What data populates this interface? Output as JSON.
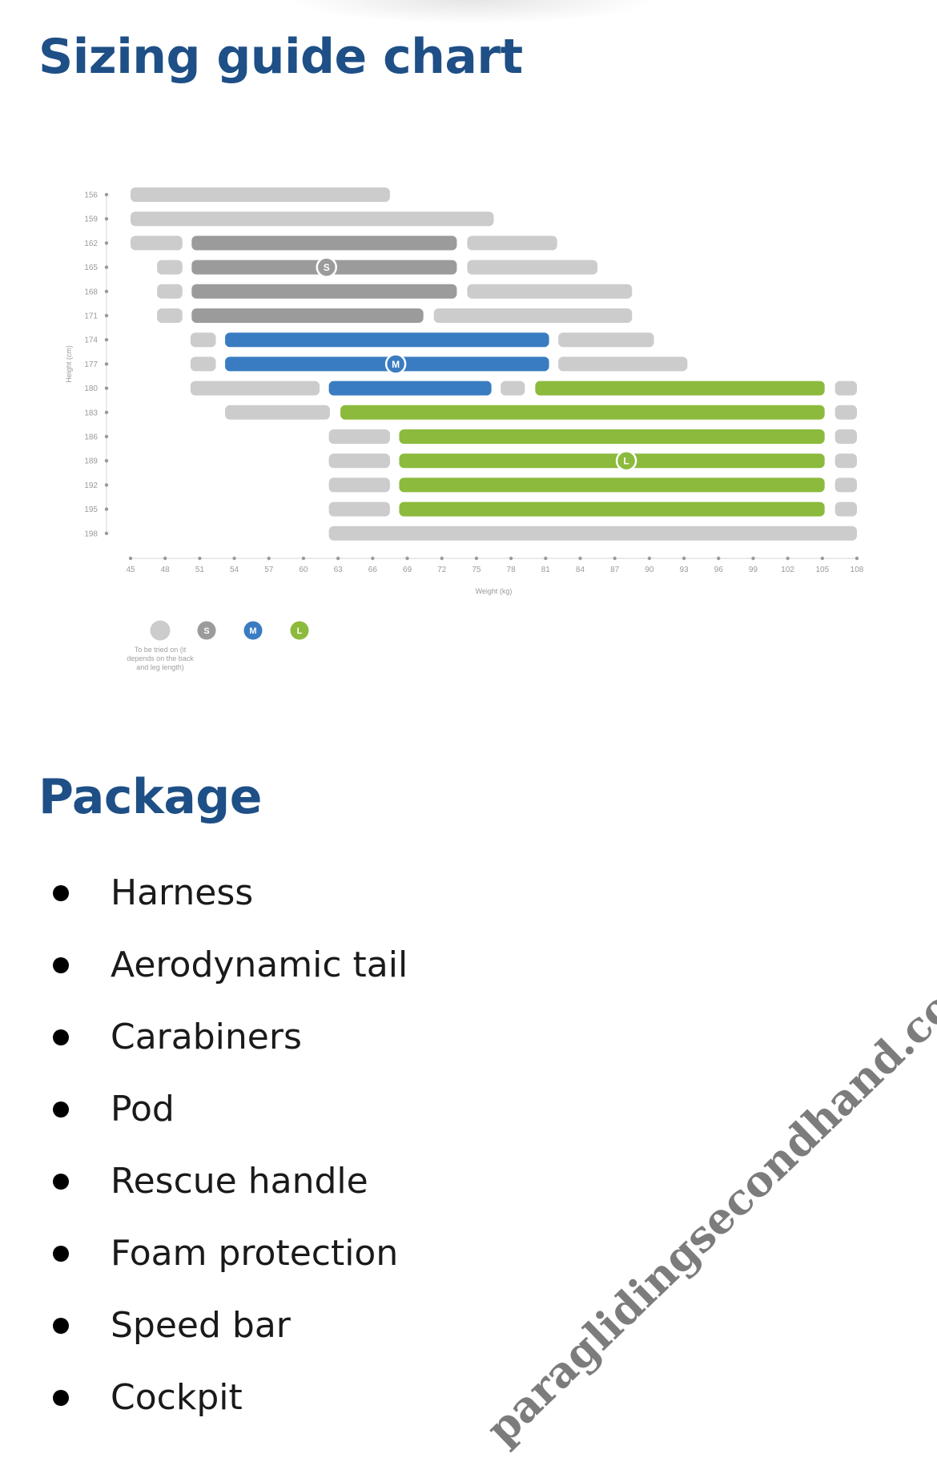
{
  "headings": {
    "sizing": "Sizing guide chart",
    "package": "Package"
  },
  "chart_data": {
    "type": "range-bar",
    "xlabel": "Weight (kg)",
    "ylabel": "Height (cm)",
    "x_ticks": [
      45,
      48,
      51,
      54,
      57,
      60,
      63,
      66,
      69,
      72,
      75,
      78,
      81,
      84,
      87,
      90,
      93,
      96,
      99,
      102,
      105,
      108
    ],
    "y_ticks": [
      156,
      159,
      162,
      165,
      168,
      171,
      174,
      177,
      180,
      183,
      186,
      189,
      192,
      195,
      198
    ],
    "xlim": [
      45,
      108
    ],
    "colors": {
      "try": "#cccccc",
      "S": "#9b9b9b",
      "M": "#3a7cc1",
      "L": "#8cba3c",
      "axis": "#9a9a9a"
    },
    "legend": [
      {
        "key": "try",
        "badge": "",
        "label": "To be tried on (it depends on the back and leg length)"
      },
      {
        "key": "S",
        "badge": "S",
        "label": ""
      },
      {
        "key": "M",
        "badge": "M",
        "label": ""
      },
      {
        "key": "L",
        "badge": "L",
        "label": ""
      }
    ],
    "size_markers": [
      {
        "size": "S",
        "height": 165,
        "weight": 62
      },
      {
        "size": "M",
        "height": 177,
        "weight": 68
      },
      {
        "size": "L",
        "height": 189,
        "weight": 88
      }
    ],
    "rows": [
      {
        "height": 156,
        "segments": [
          {
            "type": "try",
            "from": 45,
            "to": 67.5
          }
        ]
      },
      {
        "height": 159,
        "segments": [
          {
            "type": "try",
            "from": 45,
            "to": 76.5
          }
        ]
      },
      {
        "height": 162,
        "segments": [
          {
            "type": "try",
            "from": 45,
            "to": 49.5
          },
          {
            "type": "S",
            "from": 50.3,
            "to": 73.3
          },
          {
            "type": "try",
            "from": 74.2,
            "to": 82
          }
        ]
      },
      {
        "height": 165,
        "segments": [
          {
            "type": "try",
            "from": 47.3,
            "to": 49.5
          },
          {
            "type": "S",
            "from": 50.3,
            "to": 73.3
          },
          {
            "type": "try",
            "from": 74.2,
            "to": 85.5
          }
        ]
      },
      {
        "height": 168,
        "segments": [
          {
            "type": "try",
            "from": 47.3,
            "to": 49.5
          },
          {
            "type": "S",
            "from": 50.3,
            "to": 73.3
          },
          {
            "type": "try",
            "from": 74.2,
            "to": 88.5
          }
        ]
      },
      {
        "height": 171,
        "segments": [
          {
            "type": "try",
            "from": 47.3,
            "to": 49.5
          },
          {
            "type": "S",
            "from": 50.3,
            "to": 70.4
          },
          {
            "type": "try",
            "from": 71.3,
            "to": 88.5
          }
        ]
      },
      {
        "height": 174,
        "segments": [
          {
            "type": "try",
            "from": 50.2,
            "to": 52.4
          },
          {
            "type": "M",
            "from": 53.2,
            "to": 81.3
          },
          {
            "type": "try",
            "from": 82.1,
            "to": 90.4
          }
        ]
      },
      {
        "height": 177,
        "segments": [
          {
            "type": "try",
            "from": 50.2,
            "to": 52.4
          },
          {
            "type": "M",
            "from": 53.2,
            "to": 81.3
          },
          {
            "type": "try",
            "from": 82.1,
            "to": 93.3
          }
        ]
      },
      {
        "height": 180,
        "segments": [
          {
            "type": "try",
            "from": 50.2,
            "to": 61.4
          },
          {
            "type": "M",
            "from": 62.2,
            "to": 76.3
          },
          {
            "type": "try",
            "from": 77.1,
            "to": 79.2
          },
          {
            "type": "L",
            "from": 80.1,
            "to": 105.2
          },
          {
            "type": "try",
            "from": 106.1,
            "to": 108
          }
        ]
      },
      {
        "height": 183,
        "segments": [
          {
            "type": "try",
            "from": 53.2,
            "to": 62.3
          },
          {
            "type": "L",
            "from": 63.2,
            "to": 105.2
          },
          {
            "type": "try",
            "from": 106.1,
            "to": 108
          }
        ]
      },
      {
        "height": 186,
        "segments": [
          {
            "type": "try",
            "from": 62.2,
            "to": 67.5
          },
          {
            "type": "L",
            "from": 68.3,
            "to": 105.2
          },
          {
            "type": "try",
            "from": 106.1,
            "to": 108
          }
        ]
      },
      {
        "height": 189,
        "segments": [
          {
            "type": "try",
            "from": 62.2,
            "to": 67.5
          },
          {
            "type": "L",
            "from": 68.3,
            "to": 105.2
          },
          {
            "type": "try",
            "from": 106.1,
            "to": 108
          }
        ]
      },
      {
        "height": 192,
        "segments": [
          {
            "type": "try",
            "from": 62.2,
            "to": 67.5
          },
          {
            "type": "L",
            "from": 68.3,
            "to": 105.2
          },
          {
            "type": "try",
            "from": 106.1,
            "to": 108
          }
        ]
      },
      {
        "height": 195,
        "segments": [
          {
            "type": "try",
            "from": 62.2,
            "to": 67.5
          },
          {
            "type": "L",
            "from": 68.3,
            "to": 105.2
          },
          {
            "type": "try",
            "from": 106.1,
            "to": 108
          }
        ]
      },
      {
        "height": 198,
        "segments": [
          {
            "type": "try",
            "from": 62.2,
            "to": 108
          }
        ]
      }
    ]
  },
  "package": {
    "items": [
      "Harness",
      "Aerodynamic tail",
      "Carabiners",
      "Pod",
      "Rescue handle",
      "Foam protection",
      "Speed bar",
      "Cockpit"
    ]
  },
  "watermark": "paraglidingsecondhand.com"
}
